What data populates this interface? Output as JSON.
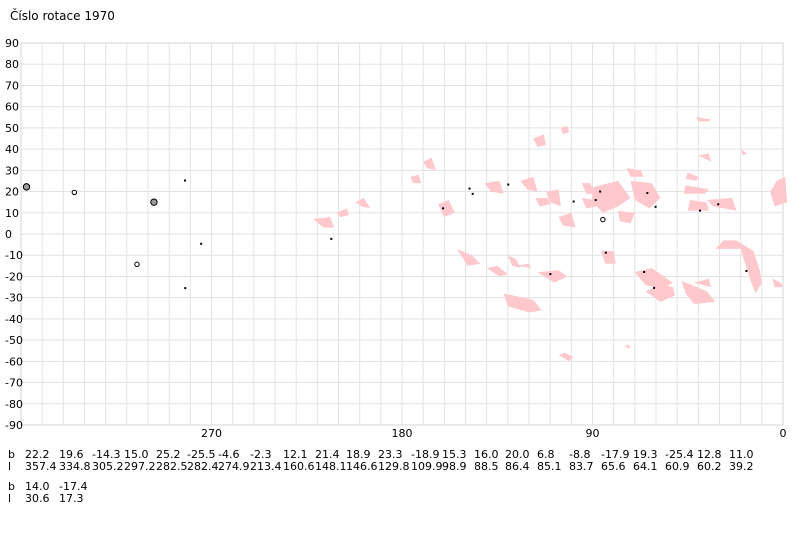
{
  "title": "Číslo rotace  1970",
  "chart_data": {
    "type": "scatter",
    "title": "Číslo rotace  1970",
    "xlim": [
      360,
      0
    ],
    "ylim": [
      -90,
      90
    ],
    "x_ticks": [
      270,
      180,
      90,
      0
    ],
    "y_ticks": [
      90,
      80,
      70,
      60,
      50,
      40,
      30,
      20,
      10,
      0,
      -10,
      -20,
      -30,
      -40,
      -50,
      -60,
      -70,
      -80,
      -90
    ],
    "grid": true,
    "spot_color": "#000000",
    "region_color": "#ffc8cc",
    "points": [
      {
        "l": 357.4,
        "b": 22.2,
        "size": 3
      },
      {
        "l": 334.8,
        "b": 19.6,
        "size": 2
      },
      {
        "l": 305.2,
        "b": -14.3,
        "size": 2
      },
      {
        "l": 297.2,
        "b": 15.0,
        "size": 3
      },
      {
        "l": 282.5,
        "b": 25.2,
        "size": 1
      },
      {
        "l": 282.4,
        "b": -25.5,
        "size": 1
      },
      {
        "l": 274.9,
        "b": -4.6,
        "size": 1
      },
      {
        "l": 213.4,
        "b": -2.3,
        "size": 1
      },
      {
        "l": 160.6,
        "b": 12.1,
        "size": 1
      },
      {
        "l": 148.1,
        "b": 21.4,
        "size": 1
      },
      {
        "l": 146.6,
        "b": 18.9,
        "size": 1
      },
      {
        "l": 129.8,
        "b": 23.3,
        "size": 1
      },
      {
        "l": 109.9,
        "b": -18.9,
        "size": 1
      },
      {
        "l": 98.9,
        "b": 15.3,
        "size": 1
      },
      {
        "l": 88.5,
        "b": 16.0,
        "size": 1
      },
      {
        "l": 86.4,
        "b": 20.0,
        "size": 1
      },
      {
        "l": 85.1,
        "b": 6.8,
        "size": 2
      },
      {
        "l": 83.7,
        "b": -8.8,
        "size": 1
      },
      {
        "l": 65.6,
        "b": -17.9,
        "size": 1
      },
      {
        "l": 64.1,
        "b": 19.3,
        "size": 1
      },
      {
        "l": 60.9,
        "b": -25.4,
        "size": 1
      },
      {
        "l": 60.2,
        "b": 12.8,
        "size": 1
      },
      {
        "l": 39.2,
        "b": 11.0,
        "size": 1
      },
      {
        "l": 30.6,
        "b": 14.0,
        "size": 1
      },
      {
        "l": 17.3,
        "b": -17.4,
        "size": 1
      }
    ],
    "regions": [
      [
        [
          170,
          34
        ],
        [
          166,
          36
        ],
        [
          164,
          30
        ],
        [
          168,
          31
        ]
      ],
      [
        [
          176,
          27
        ],
        [
          172,
          28
        ],
        [
          171,
          24
        ],
        [
          175,
          24
        ]
      ],
      [
        [
          202,
          15
        ],
        [
          198,
          17
        ],
        [
          195,
          12
        ],
        [
          199,
          13
        ]
      ],
      [
        [
          211,
          10
        ],
        [
          206,
          12
        ],
        [
          205,
          9
        ],
        [
          209,
          8
        ]
      ],
      [
        [
          222,
          7
        ],
        [
          214,
          8
        ],
        [
          212,
          3
        ],
        [
          217,
          3
        ]
      ],
      [
        [
          163,
          14
        ],
        [
          158,
          16
        ],
        [
          155,
          10
        ],
        [
          160,
          8
        ]
      ],
      [
        [
          141,
          24
        ],
        [
          134,
          25
        ],
        [
          132,
          19
        ],
        [
          138,
          20
        ]
      ],
      [
        [
          118,
          45
        ],
        [
          113,
          47
        ],
        [
          112,
          42
        ],
        [
          116,
          41
        ]
      ],
      [
        [
          105,
          50
        ],
        [
          102,
          51
        ],
        [
          101,
          48
        ],
        [
          104,
          47
        ]
      ],
      [
        [
          124,
          25
        ],
        [
          118,
          27
        ],
        [
          116,
          20
        ],
        [
          121,
          21
        ]
      ],
      [
        [
          117,
          17
        ],
        [
          111,
          17
        ],
        [
          110,
          14
        ],
        [
          115,
          13
        ]
      ],
      [
        [
          112,
          20
        ],
        [
          106,
          21
        ],
        [
          105,
          13
        ],
        [
          110,
          15
        ]
      ],
      [
        [
          106,
          8
        ],
        [
          100,
          10
        ],
        [
          98,
          3
        ],
        [
          104,
          4
        ]
      ],
      [
        [
          95,
          24
        ],
        [
          91,
          24
        ],
        [
          89,
          19
        ],
        [
          93,
          19
        ]
      ],
      [
        [
          95,
          17
        ],
        [
          89,
          16
        ],
        [
          88,
          13
        ],
        [
          93,
          12
        ]
      ],
      [
        [
          90,
          22
        ],
        [
          78,
          25
        ],
        [
          72,
          17
        ],
        [
          78,
          13
        ],
        [
          85,
          10
        ],
        [
          90,
          15
        ]
      ],
      [
        [
          72,
          25
        ],
        [
          62,
          24
        ],
        [
          58,
          17
        ],
        [
          63,
          12
        ],
        [
          70,
          16
        ]
      ],
      [
        [
          74,
          31
        ],
        [
          67,
          30
        ],
        [
          66,
          27
        ],
        [
          72,
          27
        ]
      ],
      [
        [
          78,
          11
        ],
        [
          70,
          10
        ],
        [
          72,
          5
        ],
        [
          77,
          6
        ]
      ],
      [
        [
          86,
          -8
        ],
        [
          80,
          -8
        ],
        [
          79,
          -14
        ],
        [
          84,
          -14
        ]
      ],
      [
        [
          90,
          20
        ],
        [
          84,
          21
        ],
        [
          83,
          16
        ],
        [
          88,
          16
        ]
      ],
      [
        [
          154,
          -7
        ],
        [
          147,
          -10
        ],
        [
          143,
          -14
        ],
        [
          149,
          -15
        ]
      ],
      [
        [
          140,
          -16
        ],
        [
          134,
          -20
        ],
        [
          130,
          -19
        ],
        [
          135,
          -15
        ]
      ],
      [
        [
          130,
          -10
        ],
        [
          126,
          -12
        ],
        [
          124,
          -16
        ],
        [
          128,
          -15
        ]
      ],
      [
        [
          126,
          -15
        ],
        [
          119,
          -16
        ],
        [
          120,
          -14
        ]
      ],
      [
        [
          116,
          -18
        ],
        [
          108,
          -23
        ],
        [
          102,
          -20
        ],
        [
          106,
          -17
        ]
      ],
      [
        [
          132,
          -28
        ],
        [
          118,
          -31
        ],
        [
          114,
          -36
        ],
        [
          120,
          -37
        ],
        [
          130,
          -34
        ]
      ],
      [
        [
          70,
          -18
        ],
        [
          62,
          -16
        ],
        [
          52,
          -23
        ],
        [
          57,
          -26
        ],
        [
          65,
          -24
        ]
      ],
      [
        [
          65,
          -27
        ],
        [
          58,
          -32
        ],
        [
          51,
          -29
        ],
        [
          52,
          -25
        ],
        [
          58,
          -24
        ]
      ],
      [
        [
          48,
          -22
        ],
        [
          36,
          -27
        ],
        [
          32,
          -32
        ],
        [
          42,
          -33
        ],
        [
          46,
          -28
        ]
      ],
      [
        [
          42,
          -23
        ],
        [
          34,
          -25
        ],
        [
          35,
          -21
        ]
      ],
      [
        [
          40,
          37
        ],
        [
          34,
          34
        ],
        [
          35,
          38
        ]
      ],
      [
        [
          45,
          29
        ],
        [
          40,
          27
        ],
        [
          41,
          25
        ],
        [
          46,
          26
        ]
      ],
      [
        [
          46,
          23
        ],
        [
          35,
          21
        ],
        [
          37,
          19
        ],
        [
          47,
          19
        ]
      ],
      [
        [
          44,
          16
        ],
        [
          36,
          15
        ],
        [
          35,
          11
        ],
        [
          45,
          11
        ]
      ],
      [
        [
          36,
          16
        ],
        [
          24,
          17
        ],
        [
          22,
          11
        ],
        [
          33,
          13
        ]
      ],
      [
        [
          41,
          55
        ],
        [
          34,
          54
        ],
        [
          35,
          53
        ],
        [
          40,
          53
        ]
      ],
      [
        [
          20,
          40
        ],
        [
          17,
          38
        ],
        [
          19,
          37
        ]
      ],
      [
        [
          32,
          -7
        ],
        [
          20,
          -7
        ],
        [
          16,
          -20
        ],
        [
          13,
          -28
        ],
        [
          10,
          -23
        ],
        [
          11,
          -17
        ],
        [
          14,
          -8
        ],
        [
          22,
          -3
        ],
        [
          28,
          -3
        ]
      ],
      [
        [
          3,
          25
        ],
        [
          -1,
          27
        ],
        [
          -2,
          15
        ],
        [
          4,
          13
        ],
        [
          6,
          20
        ]
      ],
      [
        [
          5,
          -21
        ],
        [
          1,
          -23
        ],
        [
          0,
          -25
        ],
        [
          4,
          -25
        ]
      ],
      [
        [
          103,
          -56
        ],
        [
          99,
          -58
        ],
        [
          101,
          -60
        ],
        [
          106,
          -57
        ]
      ],
      [
        [
          75,
          -53
        ],
        [
          72,
          -54
        ],
        [
          73,
          -52
        ]
      ]
    ],
    "table": {
      "row_labels": [
        "b",
        "l"
      ],
      "rows": [
        [
          {
            "b": "22.2",
            "l": "357.4"
          },
          {
            "b": "19.6",
            "l": "334.8"
          },
          {
            "b": "-14.3",
            "l": "305.2"
          },
          {
            "b": "15.0",
            "l": "297.2"
          },
          {
            "b": "25.2",
            "l": "282.5"
          },
          {
            "b": "-25.5",
            "l": "282.4"
          },
          {
            "b": "-4.6",
            "l": "274.9"
          },
          {
            "b": "-2.3",
            "l": "213.4"
          },
          {
            "b": "12.1",
            "l": "160.6"
          },
          {
            "b": "21.4",
            "l": "148.1"
          },
          {
            "b": "18.9",
            "l": "146.6"
          },
          {
            "b": "23.3",
            "l": "129.8"
          },
          {
            "b": "-18.9",
            "l": "109.9"
          },
          {
            "b": "15.3",
            "l": "98.9"
          },
          {
            "b": "16.0",
            "l": "88.5"
          },
          {
            "b": "20.0",
            "l": "86.4"
          },
          {
            "b": "6.8",
            "l": "85.1"
          },
          {
            "b": "-8.8",
            "l": "83.7"
          },
          {
            "b": "-17.9",
            "l": "65.6"
          },
          {
            "b": "19.3",
            "l": "64.1"
          },
          {
            "b": "-25.4",
            "l": "60.9"
          },
          {
            "b": "12.8",
            "l": "60.2"
          },
          {
            "b": "11.0",
            "l": "39.2"
          }
        ],
        [
          {
            "b": "14.0",
            "l": "30.6"
          },
          {
            "b": "-17.4",
            "l": "17.3"
          }
        ]
      ]
    }
  }
}
